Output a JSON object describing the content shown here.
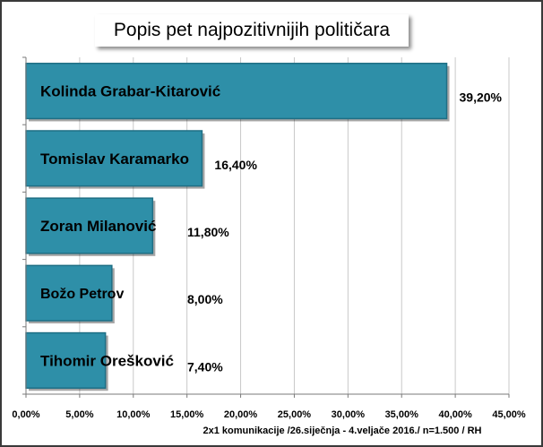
{
  "chart_data": {
    "type": "bar",
    "orientation": "horizontal",
    "title": "Popis pet najpozitivnijih političara",
    "categories": [
      "Kolinda Grabar-Kitarović",
      "Tomislav Karamarko",
      "Zoran Milanović",
      "Božo Petrov",
      "Tihomir Orešković"
    ],
    "values": [
      39.2,
      16.4,
      11.8,
      8.0,
      7.4
    ],
    "value_labels": [
      "39,20%",
      "16,40%",
      "11,80%",
      "8,00%",
      "7,40%"
    ],
    "xlim": [
      0,
      45
    ],
    "x_ticks": [
      0,
      5,
      10,
      15,
      20,
      25,
      30,
      35,
      40,
      45
    ],
    "x_tick_labels": [
      "0,00%",
      "5,00%",
      "10,00%",
      "15,00%",
      "20,00%",
      "25,00%",
      "30,00%",
      "35,00%",
      "40,00%",
      "45,00%"
    ],
    "grid": true,
    "bar_color": "#2e8fa8",
    "bar_edge_color": "#1f6f85",
    "footnote": "2x1 komunikacije /26.siječnja - 4.veljače 2016./ n=1.500 / RH"
  }
}
